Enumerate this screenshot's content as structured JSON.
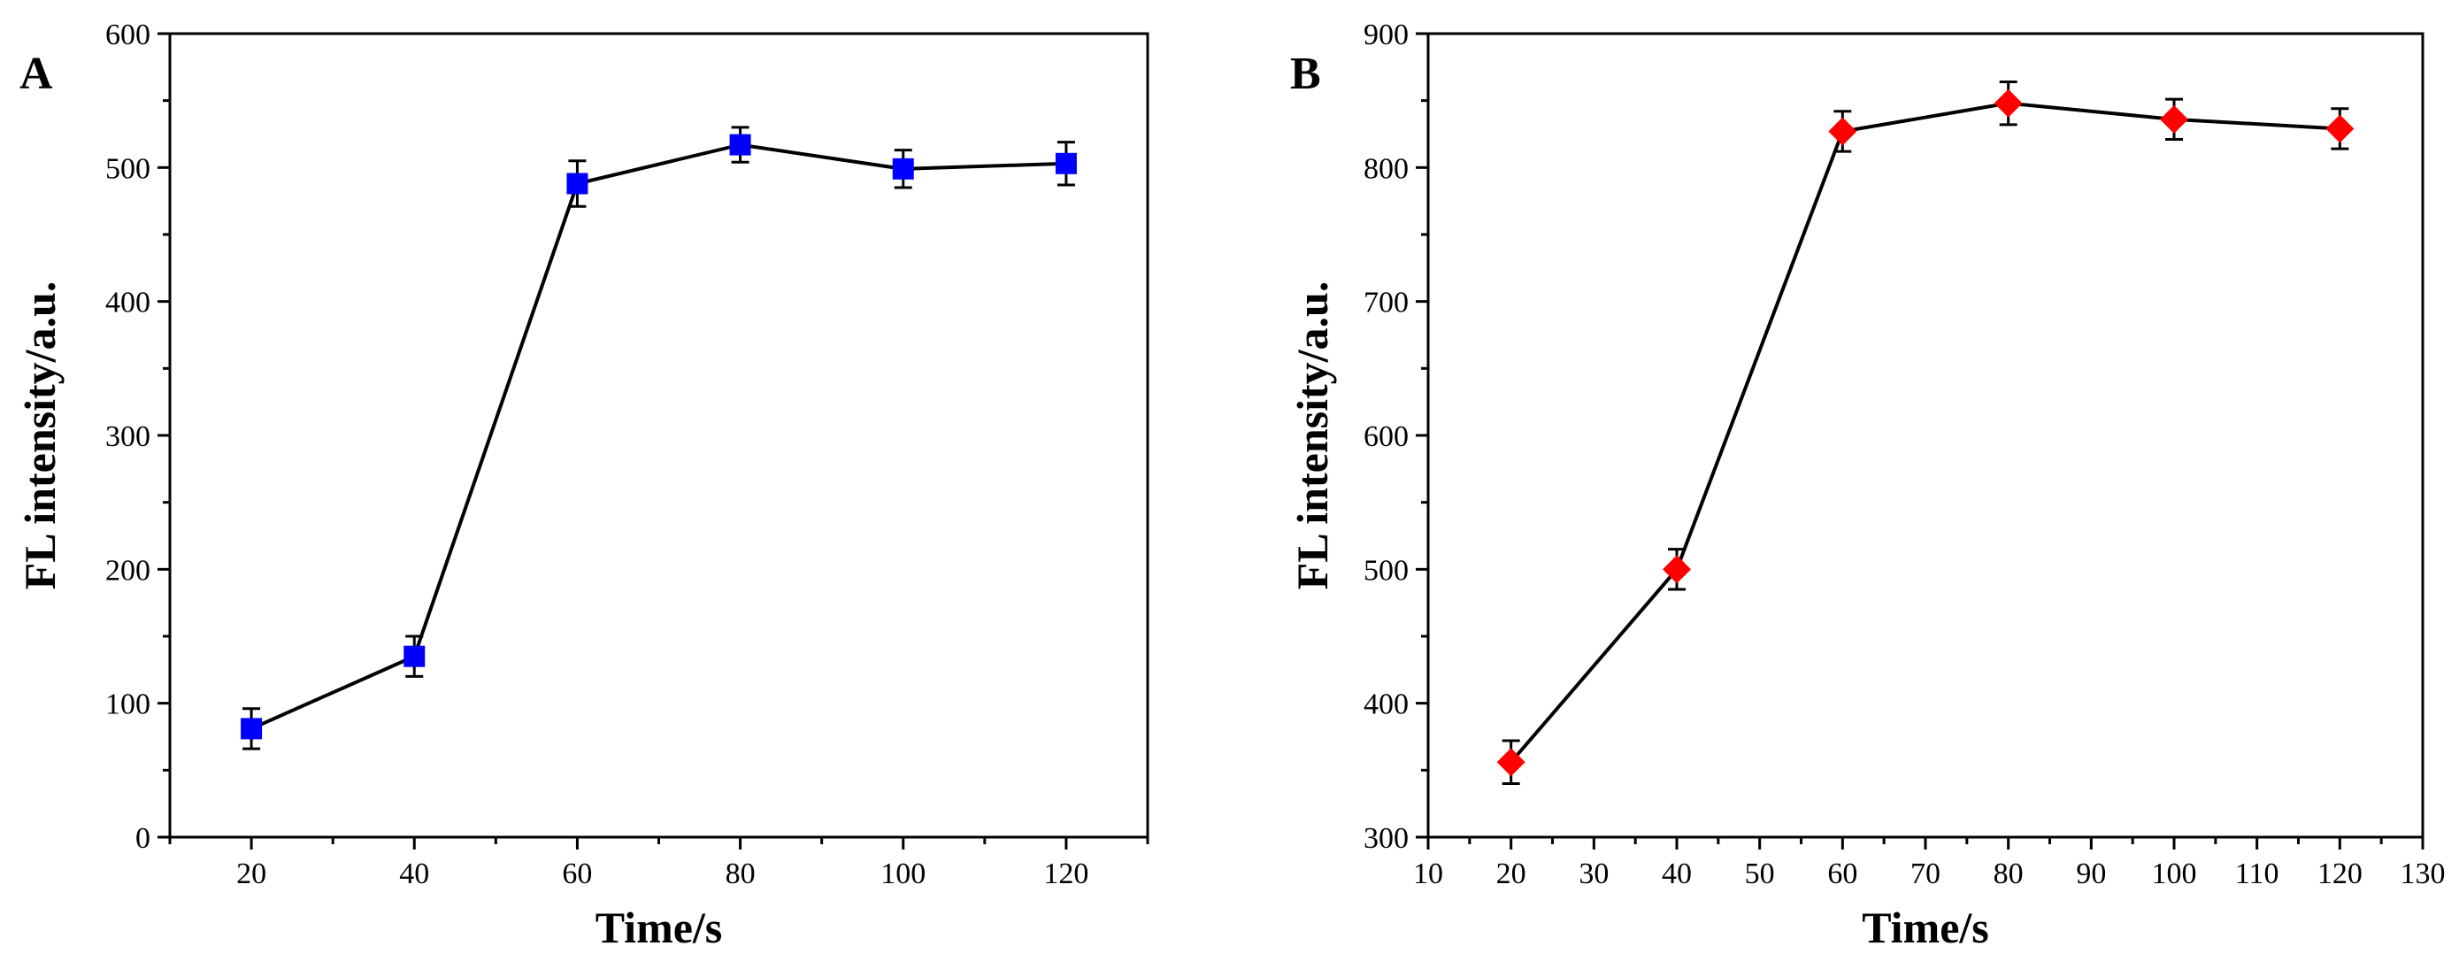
{
  "chart_data": [
    {
      "panel_label": "A",
      "type": "line",
      "xlabel": "Time/s",
      "ylabel": "FL intensity/a.u.",
      "xlim": [
        10,
        130
      ],
      "ylim": [
        0,
        600
      ],
      "x_ticks": [
        20,
        40,
        60,
        80,
        100,
        120
      ],
      "x_tick_labels": [
        "20",
        "40",
        "60",
        "80",
        "100",
        "120"
      ],
      "y_ticks": [
        0,
        100,
        200,
        300,
        400,
        500,
        600
      ],
      "y_tick_labels": [
        "0",
        "100",
        "200",
        "300",
        "400",
        "500",
        "600"
      ],
      "grid": false,
      "series": [
        {
          "marker": "square",
          "color": "#0000FF",
          "line_color": "#000000",
          "x": [
            20,
            40,
            60,
            80,
            100,
            120
          ],
          "y": [
            81,
            135,
            488,
            517,
            499,
            503
          ],
          "error": [
            15,
            15,
            17,
            13,
            14,
            16
          ]
        }
      ]
    },
    {
      "panel_label": "B",
      "type": "line",
      "xlabel": "Time/s",
      "ylabel": "FL intensity/a.u.",
      "xlim": [
        10,
        130
      ],
      "ylim": [
        300,
        900
      ],
      "x_ticks": [
        10,
        20,
        30,
        40,
        50,
        60,
        70,
        80,
        90,
        100,
        110,
        120,
        130
      ],
      "x_tick_labels": [
        "10",
        "20",
        "30",
        "40",
        "50",
        "60",
        "70",
        "80",
        "90",
        "100",
        "110",
        "120",
        "130"
      ],
      "y_ticks": [
        300,
        400,
        500,
        600,
        700,
        800,
        900
      ],
      "y_tick_labels": [
        "300",
        "400",
        "500",
        "600",
        "700",
        "800",
        "900"
      ],
      "grid": false,
      "series": [
        {
          "marker": "diamond",
          "color": "#FF0000",
          "line_color": "#000000",
          "x": [
            20,
            40,
            60,
            80,
            100,
            120
          ],
          "y": [
            356,
            500,
            827,
            848,
            836,
            829
          ],
          "error": [
            16,
            15,
            15,
            16,
            15,
            15
          ]
        }
      ]
    }
  ]
}
